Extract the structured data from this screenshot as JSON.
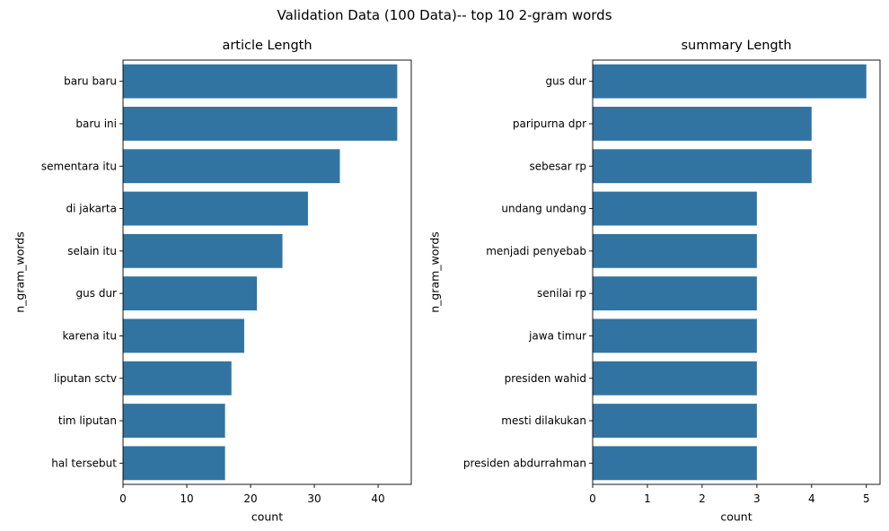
{
  "figure": {
    "title": "Validation Data (100 Data)-- top 10 2-gram words"
  },
  "chart_data": [
    {
      "type": "bar",
      "orientation": "horizontal",
      "title": "article Length",
      "xlabel": "count",
      "ylabel": "n_gram_words",
      "categories": [
        "baru baru",
        "baru ini",
        "sementara itu",
        "di jakarta",
        "selain itu",
        "gus dur",
        "karena itu",
        "liputan sctv",
        "tim liputan",
        "hal tersebut"
      ],
      "values": [
        43,
        43,
        34,
        29,
        25,
        21,
        19,
        17,
        16,
        16
      ],
      "xlim": [
        0,
        45.2
      ],
      "xticks": [
        0,
        10,
        20,
        30,
        40
      ],
      "bar_color": "#3274a1",
      "grid": false
    },
    {
      "type": "bar",
      "orientation": "horizontal",
      "title": "summary Length",
      "xlabel": "count",
      "ylabel": "n_gram_words",
      "categories": [
        "gus dur",
        "paripurna dpr",
        "sebesar rp",
        "undang undang",
        "menjadi penyebab",
        "senilai rp",
        "jawa timur",
        "presiden wahid",
        "mesti dilakukan",
        "presiden abdurrahman"
      ],
      "values": [
        5,
        4,
        4,
        3,
        3,
        3,
        3,
        3,
        3,
        3
      ],
      "xlim": [
        0,
        5.25
      ],
      "xticks": [
        0,
        1,
        2,
        3,
        4,
        5
      ],
      "bar_color": "#3274a1",
      "grid": false
    }
  ]
}
